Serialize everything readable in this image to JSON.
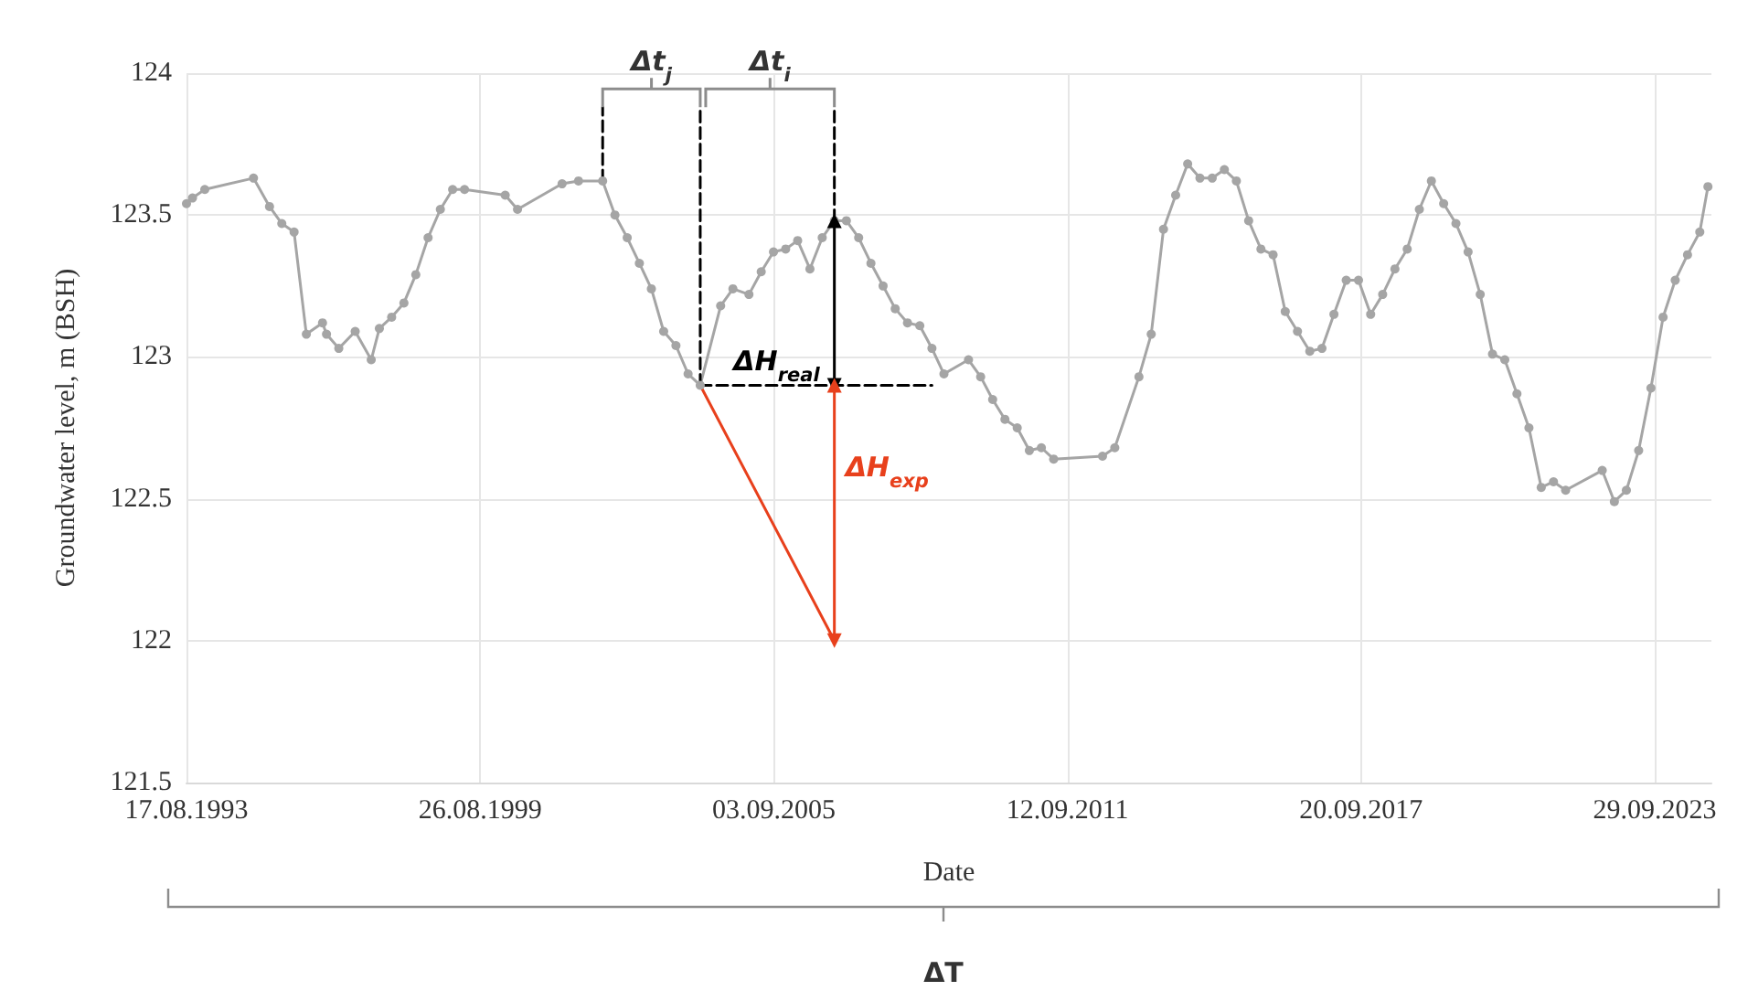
{
  "chart_data": {
    "type": "line",
    "xlabel": "Date",
    "ylabel": "Groundwater level, m (BSH)",
    "xlim": [
      "1993-08-17",
      "2024-11-27"
    ],
    "xticks": [
      {
        "value": "1993-08-17",
        "label": "17.08.1993"
      },
      {
        "value": "1999-08-26",
        "label": "26.08.1999"
      },
      {
        "value": "2005-09-03",
        "label": "03.09.2005"
      },
      {
        "value": "2011-09-12",
        "label": "12.09.2011"
      },
      {
        "value": "2017-09-20",
        "label": "20.09.2017"
      },
      {
        "value": "2023-09-29",
        "label": "29.09.2023"
      }
    ],
    "ylim": [
      121.5,
      124
    ],
    "yticks": [
      121.5,
      122,
      122.5,
      123,
      123.5,
      124
    ],
    "grid": true,
    "series": [
      {
        "color": "#a5a5a5",
        "marker": "circle",
        "line_style": "solid",
        "x": [
          "1993-08-17",
          "1993-10",
          "1994-01",
          "1995-01",
          "1995-05",
          "1995-08",
          "1995-11",
          "1996-02",
          "1996-06",
          "1996-07",
          "1996-10",
          "1997-02",
          "1997-06",
          "1997-08",
          "1997-11",
          "1998-02",
          "1998-05",
          "1998-08",
          "1998-11",
          "1999-02",
          "1999-05",
          "2000-03",
          "2000-06",
          "2001-05",
          "2001-09",
          "2002-03",
          "2002-06",
          "2002-09",
          "2002-12",
          "2003-03",
          "2003-06",
          "2003-09",
          "2003-12",
          "2004-03",
          "2004-08",
          "2004-11",
          "2005-03",
          "2005-06",
          "2005-09",
          "2005-12",
          "2006-03",
          "2006-06",
          "2006-09",
          "2006-12",
          "2007-03",
          "2007-06",
          "2007-09",
          "2007-12",
          "2008-03",
          "2008-06",
          "2008-09",
          "2008-12",
          "2009-03",
          "2009-09",
          "2009-12",
          "2010-03",
          "2010-06",
          "2010-09",
          "2010-12",
          "2011-03",
          "2011-06",
          "2012-06",
          "2012-09",
          "2013-03",
          "2013-06",
          "2013-09",
          "2013-12",
          "2014-03",
          "2014-06",
          "2014-09",
          "2014-12",
          "2015-03",
          "2015-06",
          "2015-09",
          "2015-12",
          "2016-03",
          "2016-06",
          "2016-09",
          "2016-12",
          "2017-03",
          "2017-06",
          "2017-09",
          "2017-12",
          "2018-03",
          "2018-06",
          "2018-09",
          "2018-12",
          "2019-03",
          "2019-06",
          "2019-09",
          "2019-12",
          "2020-03",
          "2020-06",
          "2020-09",
          "2020-12",
          "2021-03",
          "2021-06",
          "2021-09",
          "2021-12",
          "2022-09",
          "2022-12",
          "2023-03",
          "2023-06",
          "2023-09",
          "2023-12",
          "2024-03",
          "2024-06",
          "2024-09",
          "2024-11"
        ],
        "values": [
          123.54,
          123.56,
          123.59,
          123.63,
          123.53,
          123.47,
          123.44,
          123.08,
          123.12,
          123.08,
          123.03,
          123.09,
          122.99,
          123.1,
          123.14,
          123.19,
          123.29,
          123.42,
          123.52,
          123.59,
          123.59,
          123.57,
          123.52,
          123.61,
          123.62,
          123.62,
          123.5,
          123.42,
          123.33,
          123.24,
          123.09,
          123.04,
          122.94,
          122.9,
          123.18,
          123.24,
          123.22,
          123.3,
          123.37,
          123.38,
          123.41,
          123.31,
          123.42,
          123.48,
          123.48,
          123.42,
          123.33,
          123.25,
          123.17,
          123.12,
          123.11,
          123.03,
          122.94,
          122.99,
          122.93,
          122.85,
          122.78,
          122.75,
          122.67,
          122.68,
          122.64,
          122.65,
          122.68,
          122.93,
          123.08,
          123.45,
          123.57,
          123.68,
          123.63,
          123.63,
          123.66,
          123.62,
          123.48,
          123.38,
          123.36,
          123.16,
          123.09,
          123.02,
          123.03,
          123.15,
          123.27,
          123.27,
          123.15,
          123.22,
          123.31,
          123.38,
          123.52,
          123.62,
          123.54,
          123.47,
          123.37,
          123.22,
          123.01,
          122.99,
          122.87,
          122.75,
          122.54,
          122.56,
          122.53,
          122.6,
          122.49,
          122.53,
          122.67,
          122.89,
          123.14,
          123.27,
          123.36,
          123.44,
          123.6
        ]
      },
      {
        "color": "#000000",
        "marker": "none",
        "line_style": "dashed",
        "x": [
          "2002-03",
          "2002-03"
        ],
        "values": [
          123.62,
          123.88
        ]
      },
      {
        "color": "#000000",
        "marker": "none",
        "line_style": "dashed",
        "x": [
          "2004-03",
          "2004-03"
        ],
        "values": [
          122.9,
          123.88
        ]
      },
      {
        "color": "#000000",
        "line_style": "dashed",
        "x": [
          "2006-12",
          "2006-12"
        ],
        "values": [
          123.48,
          123.88
        ]
      },
      {
        "color": "#000000",
        "marker": "none",
        "line_style": "dashed",
        "x": [
          "2004-03",
          "2008-12"
        ],
        "values": [
          122.9,
          122.9
        ]
      },
      {
        "color": "#e8401c",
        "line_style": "solid",
        "x": [
          "2004-03",
          "2006-12"
        ],
        "values": [
          122.9,
          122.0
        ]
      },
      {
        "color": "#000000",
        "marker": "triangle",
        "line_style": "solid",
        "x": [
          "2006-12",
          "2006-12"
        ],
        "values": [
          122.9,
          123.48
        ]
      },
      {
        "color": "#e8401c",
        "marker": "triangle",
        "line_style": "solid",
        "x": [
          "2006-12",
          "2006-12"
        ],
        "values": [
          122.9,
          122.0
        ]
      }
    ],
    "annotations": [
      "Δt$_{j}$",
      "Δt$_{i}$",
      "ΔH$_{real}$",
      "ΔH$_{exp}$",
      "ΔT"
    ]
  }
}
